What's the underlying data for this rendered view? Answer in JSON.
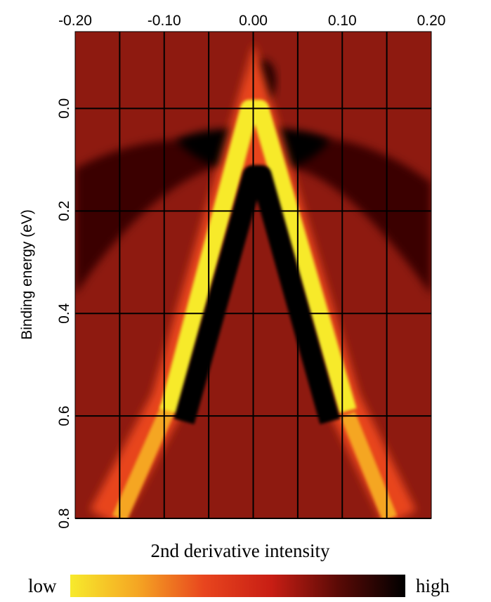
{
  "chart_data": {
    "type": "heatmap",
    "ylabel": "Binding energy (eV)",
    "colorbar_title": "2nd derivative intensity",
    "colorbar_low": "low",
    "colorbar_high": "high",
    "colormap": [
      "#f7ea2c",
      "#f5a623",
      "#e8451e",
      "#c81e14",
      "#5a0a06",
      "#000000"
    ],
    "xlim": [
      -0.2,
      0.2
    ],
    "xticks": [
      {
        "value": -0.2,
        "label": "-0.20"
      },
      {
        "value": -0.1,
        "label": "-0.10"
      },
      {
        "value": 0,
        "label": "0.00"
      },
      {
        "value": 0.1,
        "label": "0.10"
      },
      {
        "value": 0.2,
        "label": "0.20"
      }
    ],
    "xgrid": [
      -0.15,
      -0.1,
      -0.05,
      0,
      0.05,
      0.1,
      0.15
    ],
    "ylim": [
      -0.15,
      0.8
    ],
    "y_inverted": true,
    "yticks": [
      {
        "value": 0,
        "label": "0.0"
      },
      0.2,
      0.4,
      0.6,
      0.8
    ],
    "grid": true
  }
}
